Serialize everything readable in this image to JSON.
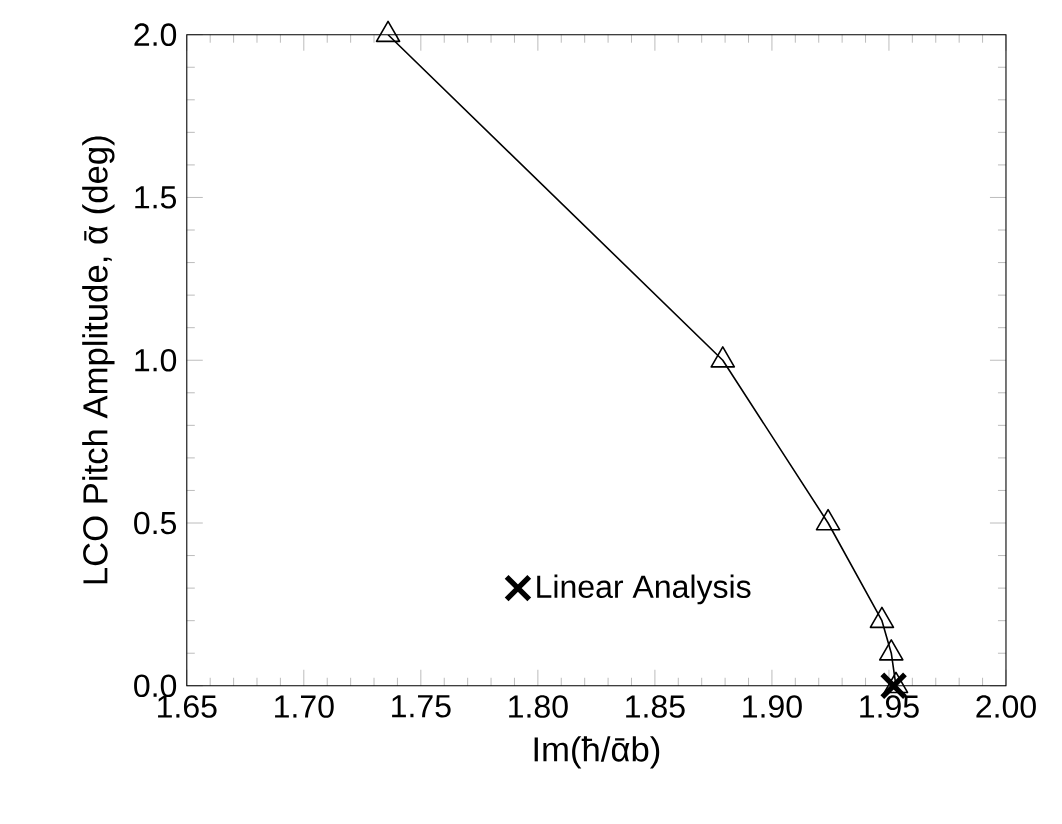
{
  "chart_data": {
    "type": "line",
    "xlabel": "Im(ħ/ᾱb)",
    "ylabel": "LCO Pitch Amplitude, ᾱ (deg)",
    "series": [
      {
        "color": "#000000",
        "marker": "triangle",
        "x": [
          1.736,
          1.879,
          1.924,
          1.947,
          1.951,
          1.953
        ],
        "values": [
          2.0,
          1.0,
          0.5,
          0.2,
          0.1,
          0.0
        ]
      },
      {
        "type": "scatter",
        "name": "Linear Analysis",
        "color": "#000000",
        "marker": "cross",
        "x": [
          1.952
        ],
        "values": [
          0.0
        ]
      }
    ],
    "xlim": [
      1.65,
      2.0
    ],
    "ylim": [
      0.0,
      2.0
    ],
    "xticks": [
      1.65,
      {
        "value": 1.7,
        "label": "1.70"
      },
      1.75,
      {
        "value": 1.8,
        "label": "1.80"
      },
      1.85,
      {
        "value": 1.9,
        "label": "1.90"
      },
      1.95,
      {
        "value": 2.0,
        "label": "2.00"
      }
    ],
    "yticks": [
      {
        "value": 0.0,
        "label": "0.0"
      },
      {
        "value": 0.5,
        "label": "0.5"
      },
      {
        "value": 1.0,
        "label": "1.0"
      },
      {
        "value": 1.5,
        "label": "1.5"
      },
      {
        "value": 2.0,
        "label": "2.0"
      }
    ],
    "legend": "bottom",
    "grid": false
  }
}
